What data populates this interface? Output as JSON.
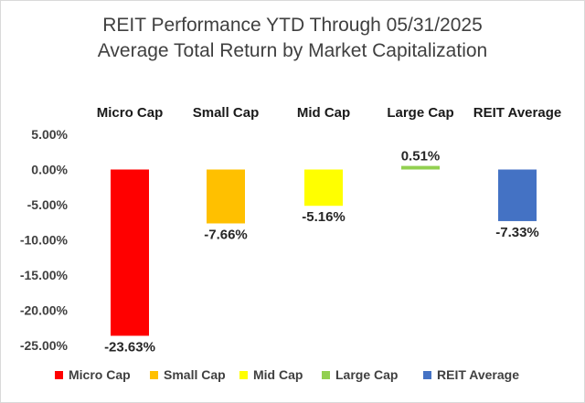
{
  "chart_data": {
    "type": "bar",
    "title": "REIT Performance YTD Through 05/31/2025",
    "subtitle": "Average Total Return by Market Capitalization",
    "categories": [
      "Micro Cap",
      "Small Cap",
      "Mid Cap",
      "Large Cap",
      "REIT Average"
    ],
    "values": [
      -23.63,
      -7.66,
      -5.16,
      0.51,
      -7.33
    ],
    "value_labels": [
      "-23.63%",
      "-7.66%",
      "-5.16%",
      "0.51%",
      "-7.33%"
    ],
    "colors": [
      "#ff0000",
      "#ffc000",
      "#ffff00",
      "#92d050",
      "#4472c4"
    ],
    "ylim": [
      -25,
      5
    ],
    "yticks": [
      5,
      0,
      -5,
      -10,
      -15,
      -20,
      -25
    ],
    "ytick_labels": [
      "5.00%",
      "0.00%",
      "-5.00%",
      "-10.00%",
      "-15.00%",
      "-20.00%",
      "-25.00%"
    ],
    "xlabel": "",
    "ylabel": "",
    "grid": false,
    "legend_position": "bottom",
    "category_labels_position": "top"
  }
}
